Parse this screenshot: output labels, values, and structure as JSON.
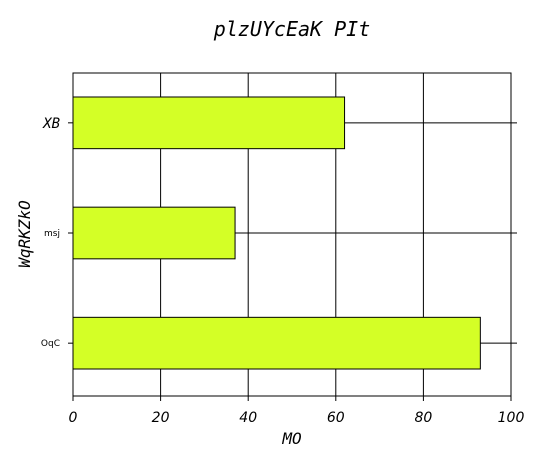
{
  "chart_data": {
    "type": "bar",
    "orientation": "horizontal",
    "title": "plzUYcEaK PIt",
    "xlabel": "MO",
    "ylabel": "WqRKZkO",
    "categories": [
      "XB",
      "msj",
      "OqC"
    ],
    "values": [
      62,
      37,
      93
    ],
    "xlim": [
      0,
      100
    ],
    "xticks": [
      "0",
      "20",
      "40",
      "60",
      "80",
      "100"
    ],
    "grid": true,
    "bar_color": "#d4ff26",
    "edge_color": "#000000"
  }
}
